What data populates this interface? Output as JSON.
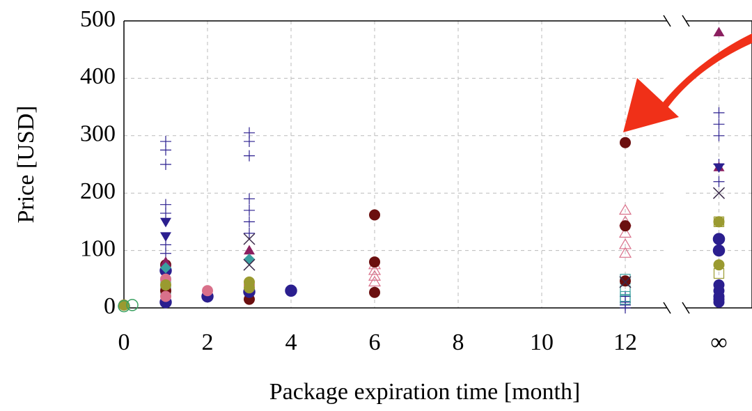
{
  "chart_data": [
    {
      "type": "scatter",
      "xlabel": "Package expiration time [month]",
      "ylabel": "Price [USD]",
      "xlim": [
        0,
        13
      ],
      "ylim": [
        0,
        500
      ],
      "xticks": [
        0,
        2,
        4,
        6,
        8,
        10,
        12
      ],
      "yticks": [
        0,
        100,
        200,
        300,
        400,
        500
      ],
      "grid": true,
      "series": [
        {
          "marker": "plus",
          "color": "#2b1f8f",
          "x": [
            1,
            1,
            1,
            1,
            1,
            1,
            1,
            3,
            3,
            3,
            3,
            3,
            3,
            3,
            12,
            12,
            12,
            12
          ],
          "values": [
            290,
            275,
            250,
            180,
            165,
            110,
            95,
            305,
            290,
            265,
            190,
            170,
            150,
            130,
            20,
            10,
            5,
            0
          ]
        },
        {
          "marker": "open-triangle",
          "color": "#d9708a",
          "x": [
            6,
            6,
            6,
            6,
            12,
            12,
            12,
            12,
            12
          ],
          "values": [
            75,
            65,
            55,
            45,
            170,
            150,
            130,
            110,
            95
          ]
        },
        {
          "marker": "open-square",
          "color": "#3aa0a0",
          "x": [
            12,
            12,
            12,
            12,
            1,
            1
          ],
          "values": [
            50,
            30,
            20,
            15,
            45,
            30
          ]
        },
        {
          "marker": "circle",
          "color": "#6b0f0f",
          "x": [
            6,
            6,
            6,
            12,
            12,
            12,
            3,
            1,
            1
          ],
          "values": [
            162,
            80,
            27,
            288,
            143,
            47,
            15,
            30,
            75
          ]
        },
        {
          "marker": "triangle-down",
          "color": "#2b1f8f",
          "x": [
            1,
            1
          ],
          "values": [
            150,
            125
          ]
        },
        {
          "marker": "half-circle",
          "color": "#2b1f8f",
          "x": [
            2,
            3,
            4,
            1,
            1
          ],
          "values": [
            20,
            28,
            30,
            10,
            65
          ]
        },
        {
          "marker": "circle",
          "color": "#d9708a",
          "x": [
            2,
            0,
            1,
            1,
            3
          ],
          "values": [
            30,
            5,
            20,
            50,
            40
          ]
        },
        {
          "marker": "triangle",
          "color": "#8b1f5f",
          "x": [
            3,
            1
          ],
          "values": [
            100,
            80
          ]
        },
        {
          "marker": "diamond",
          "color": "#3aa0a0",
          "x": [
            3,
            1
          ],
          "values": [
            85,
            70
          ]
        },
        {
          "marker": "cross",
          "color": "#3a2a4a",
          "x": [
            3,
            3,
            12
          ],
          "values": [
            120,
            75,
            45
          ]
        },
        {
          "marker": "circle",
          "color": "#9a9a30",
          "x": [
            3,
            3,
            1,
            0
          ],
          "values": [
            45,
            35,
            40,
            5
          ]
        },
        {
          "marker": "open-circle",
          "color": "#3aa060",
          "x": [
            0,
            0.2
          ],
          "values": [
            3,
            5
          ]
        }
      ]
    },
    {
      "type": "scatter",
      "xlim": [
        -1,
        1
      ],
      "ylim": [
        0,
        500
      ],
      "xticks": [
        {
          "value": 0,
          "label": "∞"
        }
      ],
      "yticks": [
        0,
        100,
        200,
        300,
        400,
        500
      ],
      "grid": true,
      "series": [
        {
          "marker": "plus",
          "color": "#2b1f8f",
          "x": [
            0,
            0,
            0,
            0,
            0
          ],
          "values": [
            340,
            320,
            300,
            250,
            220
          ]
        },
        {
          "marker": "triangle",
          "color": "#8b1f5f",
          "x": [
            0,
            0
          ],
          "values": [
            480,
            245
          ]
        },
        {
          "marker": "triangle-down",
          "color": "#2b1f8f",
          "x": [
            0
          ],
          "values": [
            245
          ]
        },
        {
          "marker": "cross",
          "color": "#3a2a4a",
          "x": [
            0
          ],
          "values": [
            200
          ]
        },
        {
          "marker": "circle",
          "color": "#9a9a30",
          "x": [
            0,
            0
          ],
          "values": [
            150,
            75
          ]
        },
        {
          "marker": "half-circle",
          "color": "#2b1f8f",
          "x": [
            0,
            0
          ],
          "values": [
            120,
            100
          ]
        },
        {
          "marker": "circle",
          "color": "#2b1f8f",
          "x": [
            0,
            0,
            0,
            0,
            0
          ],
          "values": [
            40,
            30,
            20,
            15,
            10
          ]
        },
        {
          "marker": "open-square",
          "color": "#9a9a30",
          "x": [
            0,
            0
          ],
          "values": [
            150,
            60
          ]
        }
      ]
    }
  ]
}
